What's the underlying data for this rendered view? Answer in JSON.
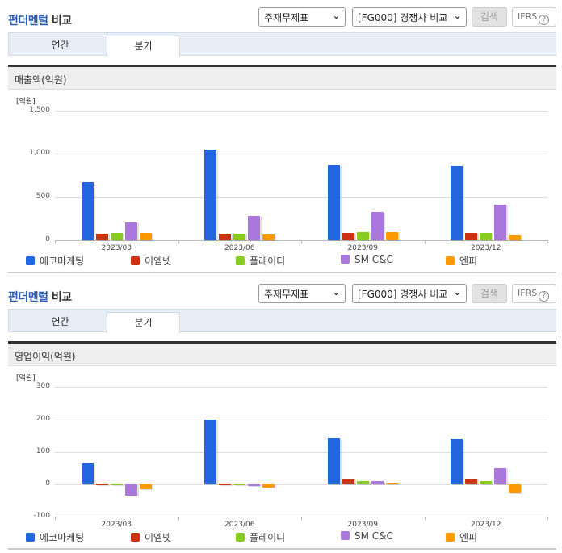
{
  "panels": [
    {
      "title_accent": "펀더멘털",
      "title_rest": " 비교",
      "select_statement": "주재무제표",
      "select_group": "[FG000] 경쟁사 비교",
      "search_label": "검색",
      "ifrs_label": "IFRS",
      "help_glyph": "?",
      "tabs": [
        {
          "label": "연간",
          "active": false
        },
        {
          "label": "분기",
          "active": true
        }
      ],
      "metric_label": "매출액(억원)",
      "unit_label": "[억원]"
    },
    {
      "title_accent": "펀더멘털",
      "title_rest": " 비교",
      "select_statement": "주재무제표",
      "select_group": "[FG000] 경쟁사 비교",
      "search_label": "검색",
      "ifrs_label": "IFRS",
      "help_glyph": "?",
      "tabs": [
        {
          "label": "연간",
          "active": false
        },
        {
          "label": "분기",
          "active": true
        }
      ],
      "metric_label": "영업이익(억원)",
      "unit_label": "[억원]"
    }
  ],
  "legend": [
    {
      "name": "에코마케팅",
      "color": "#2266dd"
    },
    {
      "name": "이엠넷",
      "color": "#cc3311"
    },
    {
      "name": "플레이디",
      "color": "#88cc22"
    },
    {
      "name": "SM C&C",
      "color": "#aa77dd"
    },
    {
      "name": "엔피",
      "color": "#ff9900"
    }
  ],
  "chart_data": [
    {
      "type": "bar",
      "title": "매출액(억원)",
      "ylabel": "[억원]",
      "xlabel": "",
      "categories": [
        "2023/03",
        "2023/06",
        "2023/09",
        "2023/12"
      ],
      "yticks": [
        "1,500",
        "1,000",
        "500",
        "0"
      ],
      "ylim": [
        0,
        1500
      ],
      "grid": true,
      "legend_position": "bottom",
      "series": [
        {
          "name": "에코마케팅",
          "values": [
            675,
            1047,
            870,
            860
          ]
        },
        {
          "name": "이엠넷",
          "values": [
            75,
            75,
            85,
            85
          ]
        },
        {
          "name": "플레이디",
          "values": [
            85,
            75,
            95,
            85
          ]
        },
        {
          "name": "SM C&C",
          "values": [
            205,
            280,
            330,
            410
          ]
        },
        {
          "name": "엔피",
          "values": [
            85,
            65,
            95,
            60
          ]
        }
      ]
    },
    {
      "type": "bar",
      "title": "영업이익(억원)",
      "ylabel": "[억원]",
      "xlabel": "",
      "categories": [
        "2023/03",
        "2023/06",
        "2023/09",
        "2023/12"
      ],
      "yticks": [
        "300",
        "200",
        "100",
        "0",
        "-100"
      ],
      "ylim": [
        -100,
        300
      ],
      "grid": true,
      "legend_position": "bottom",
      "series": [
        {
          "name": "에코마케팅",
          "values": [
            65,
            200,
            142,
            140
          ]
        },
        {
          "name": "이엠넷",
          "values": [
            -2,
            -2,
            15,
            17
          ]
        },
        {
          "name": "플레이디",
          "values": [
            -2,
            -2,
            10,
            10
          ]
        },
        {
          "name": "SM C&C",
          "values": [
            -35,
            -5,
            10,
            50
          ]
        },
        {
          "name": "엔피",
          "values": [
            -15,
            -10,
            3,
            -28
          ]
        }
      ]
    }
  ]
}
